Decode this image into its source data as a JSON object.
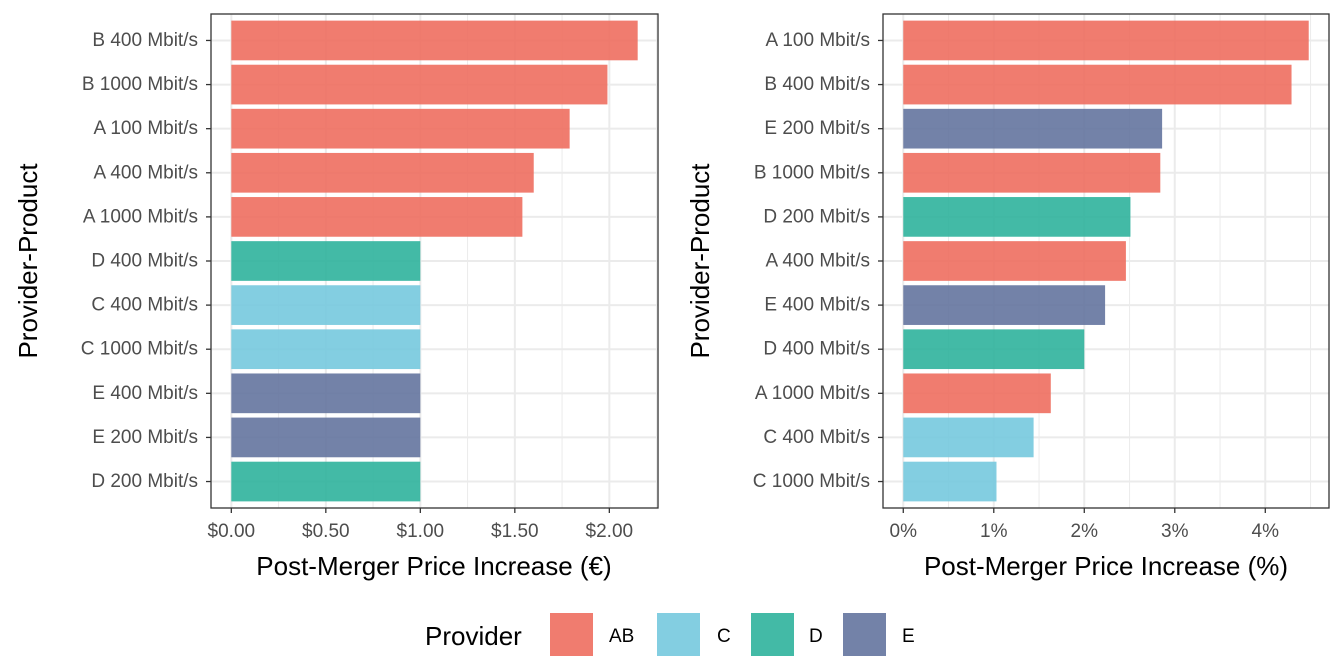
{
  "legend": {
    "title": "Provider",
    "items": [
      {
        "label": "AB",
        "color": "#ee6e5f"
      },
      {
        "label": "C",
        "color": "#76c9de"
      },
      {
        "label": "D",
        "color": "#2fb39c"
      },
      {
        "label": "E",
        "color": "#64749e"
      }
    ]
  },
  "chart_data": [
    {
      "type": "bar",
      "orientation": "horizontal",
      "xlabel": "Post-Merger Price Increase (€)",
      "ylabel": "Provider-Product",
      "xlim": [
        0,
        2.25
      ],
      "xticks": [
        0,
        0.5,
        1.0,
        1.5,
        2.0
      ],
      "xtick_labels": [
        "$0.00",
        "$0.50",
        "$1.00",
        "$1.50",
        "$2.00"
      ],
      "grid": true,
      "categories": [
        "B 400 Mbit/s",
        "B 1000 Mbit/s",
        "A 100 Mbit/s",
        "A 400 Mbit/s",
        "A 1000 Mbit/s",
        "D 400 Mbit/s",
        "C 400 Mbit/s",
        "C 1000 Mbit/s",
        "E 400 Mbit/s",
        "E 200 Mbit/s",
        "D 200 Mbit/s"
      ],
      "values": [
        2.15,
        1.99,
        1.79,
        1.6,
        1.54,
        1.0,
        1.0,
        1.0,
        1.0,
        1.0,
        1.0
      ],
      "groups": [
        "AB",
        "AB",
        "AB",
        "AB",
        "AB",
        "D",
        "C",
        "C",
        "E",
        "E",
        "D"
      ]
    },
    {
      "type": "bar",
      "orientation": "horizontal",
      "xlabel": "Post-Merger Price Increase (%)",
      "ylabel": "Provider-Product",
      "xlim": [
        0,
        4.5
      ],
      "xticks": [
        0,
        1,
        2,
        3,
        4
      ],
      "xtick_labels": [
        "0%",
        "1%",
        "2%",
        "3%",
        "4%"
      ],
      "grid": true,
      "categories": [
        "A 100 Mbit/s",
        "B 400 Mbit/s",
        "E 200 Mbit/s",
        "B 1000 Mbit/s",
        "D 200 Mbit/s",
        "A 400 Mbit/s",
        "E 400 Mbit/s",
        "D 400 Mbit/s",
        "A 1000 Mbit/s",
        "C 400 Mbit/s",
        "C 1000 Mbit/s"
      ],
      "values": [
        4.48,
        4.29,
        2.86,
        2.84,
        2.51,
        2.46,
        2.23,
        2.0,
        1.63,
        1.44,
        1.03
      ],
      "groups": [
        "AB",
        "AB",
        "E",
        "AB",
        "D",
        "AB",
        "E",
        "D",
        "AB",
        "C",
        "C"
      ]
    }
  ]
}
